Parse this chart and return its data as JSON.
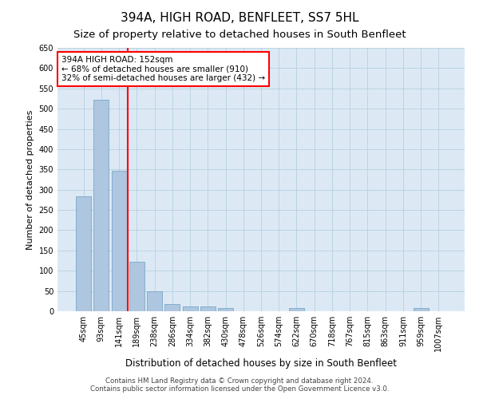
{
  "title": "394A, HIGH ROAD, BENFLEET, SS7 5HL",
  "subtitle": "Size of property relative to detached houses in South Benfleet",
  "xlabel": "Distribution of detached houses by size in South Benfleet",
  "ylabel": "Number of detached properties",
  "categories": [
    "45sqm",
    "93sqm",
    "141sqm",
    "189sqm",
    "238sqm",
    "286sqm",
    "334sqm",
    "382sqm",
    "430sqm",
    "478sqm",
    "526sqm",
    "574sqm",
    "622sqm",
    "670sqm",
    "718sqm",
    "767sqm",
    "815sqm",
    "863sqm",
    "911sqm",
    "959sqm",
    "1007sqm"
  ],
  "values": [
    283,
    522,
    347,
    123,
    49,
    17,
    11,
    11,
    8,
    0,
    0,
    0,
    7,
    0,
    0,
    0,
    0,
    0,
    0,
    7,
    0
  ],
  "bar_color": "#aec6df",
  "bar_edge_color": "#6a9fc0",
  "red_line_x": 2,
  "annotation_title": "394A HIGH ROAD: 152sqm",
  "annotation_line1": "← 68% of detached houses are smaller (910)",
  "annotation_line2": "32% of semi-detached houses are larger (432) →",
  "footer1": "Contains HM Land Registry data © Crown copyright and database right 2024.",
  "footer2": "Contains public sector information licensed under the Open Government Licence v3.0.",
  "ylim": [
    0,
    650
  ],
  "yticks": [
    0,
    50,
    100,
    150,
    200,
    250,
    300,
    350,
    400,
    450,
    500,
    550,
    600,
    650
  ],
  "background_color": "#ffffff",
  "plot_bg_color": "#dce9f5",
  "grid_color": "#b8cfe0",
  "title_fontsize": 11,
  "subtitle_fontsize": 9.5
}
